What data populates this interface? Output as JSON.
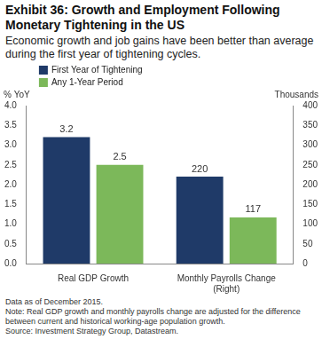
{
  "chart_data": {
    "type": "bar",
    "title": "Exhibit 36: Growth and Employment Following Monetary Tightening in the US",
    "subtitle": "Economic growth and job gains have been better than average during the first year of tightening cycles.",
    "y_label": "% YoY",
    "y2_label": "Thousands",
    "categories": [
      "Real GDP Growth",
      "Monthly Payrolls Change (Right)"
    ],
    "series": [
      {
        "name": "First Year of Tightening",
        "color": "#1f3a68",
        "values": [
          3.2,
          null
        ]
      },
      {
        "name": "Any 1-Year Period",
        "color": "#7cb85a",
        "values": [
          2.5,
          null
        ]
      },
      {
        "name": "First Year of Tightening",
        "color": "#1f3a68",
        "values": [
          null,
          220
        ],
        "axis": "y2"
      },
      {
        "name": "Any 1-Year Period",
        "color": "#7cb85a",
        "values": [
          null,
          117
        ],
        "axis": "y2"
      }
    ],
    "ylim": [
      0,
      4
    ],
    "yticks": [
      {
        "value": 0,
        "label": "0.0"
      },
      {
        "value": 0.5,
        "label": "0.5"
      },
      {
        "value": 1,
        "label": "1.0"
      },
      {
        "value": 1.5,
        "label": "1.5"
      },
      {
        "value": 2,
        "label": "2.0"
      },
      {
        "value": 2.5,
        "label": "2.5"
      },
      {
        "value": 3,
        "label": "3.0"
      },
      {
        "value": 3.5,
        "label": "3.5"
      },
      {
        "value": 4,
        "label": "4.0"
      }
    ],
    "y2lim": [
      0,
      400
    ],
    "y2ticks": [
      0,
      50,
      100,
      150,
      200,
      250,
      300,
      350,
      400
    ],
    "grid": false,
    "legend": "upper left",
    "data_labels": true,
    "footnotes": [
      "Data as of December 2015.",
      "Note: Real GDP growth and monthly payrolls change are adjusted for the difference between current and historical working-age population growth.",
      "Source: Investment Strategy Group, Datastream."
    ]
  }
}
